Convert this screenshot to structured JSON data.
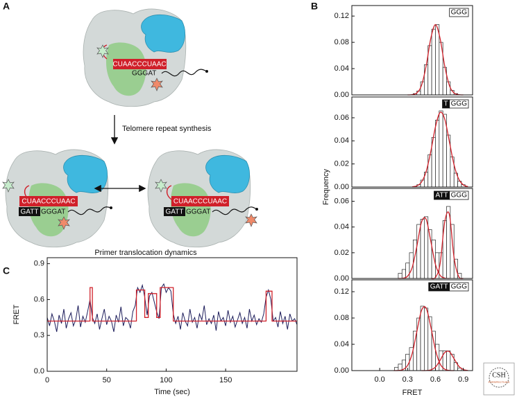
{
  "panel_labels": {
    "a": "A",
    "b": "B",
    "c": "C"
  },
  "panel_a": {
    "step_label": "Telomere repeat synthesis",
    "dynamics_label": "Primer translocation dynamics",
    "complexes": [
      {
        "rna": "CUAACCCUAAC",
        "dna": "GGGAT"
      },
      {
        "rna": "CUAACCCUAAC",
        "dna_paired": "GATT",
        "dna": "GGGAT"
      },
      {
        "rna": "CUAACCCUAAC",
        "dna_paired": "GATT",
        "dna": "GGGAT"
      }
    ]
  },
  "panel_b": {
    "ylabel": "Frequency",
    "xlabel": "FRET"
  },
  "logo": {
    "line1": "CSH",
    "line2": "PERSPECTIVES"
  },
  "chart_data": [
    {
      "type": "histogram",
      "tag": [
        {
          "text": "GGG",
          "style": "light"
        }
      ],
      "bar_color": "#ffffff",
      "fit_color": "#d0202a",
      "bins": [
        0.36,
        0.4,
        0.44,
        0.48,
        0.52,
        0.56,
        0.6,
        0.64,
        0.68,
        0.72,
        0.76,
        0.8,
        0.84
      ],
      "values": [
        0.002,
        0.006,
        0.02,
        0.046,
        0.075,
        0.1,
        0.107,
        0.08,
        0.042,
        0.02,
        0.007,
        0.002
      ],
      "fits": [
        {
          "x": [
            0.3,
            0.35,
            0.4,
            0.45,
            0.5,
            0.55,
            0.6,
            0.65,
            0.7,
            0.75,
            0.8,
            0.85,
            0.9
          ],
          "values": [
            0,
            0.0004,
            0.003,
            0.0145,
            0.044,
            0.086,
            0.107,
            0.086,
            0.044,
            0.0145,
            0.003,
            0.0004,
            0
          ]
        }
      ],
      "xlim": [
        -0.3,
        1.0
      ],
      "ylim": [
        0,
        0.136
      ],
      "yticks": [
        {
          "value": 0,
          "label": "0.00"
        },
        {
          "value": 0.04,
          "label": "0.04"
        },
        {
          "value": 0.08,
          "label": "0.08"
        },
        {
          "value": 0.12,
          "label": "0.12"
        }
      ]
    },
    {
      "type": "histogram",
      "tag": [
        {
          "text": "T",
          "style": "dark"
        },
        {
          "text": "GGG",
          "style": "light"
        }
      ],
      "bar_color": "#ffffff",
      "fit_color": "#d0202a",
      "bins": [
        0.4,
        0.44,
        0.48,
        0.52,
        0.56,
        0.6,
        0.64,
        0.68,
        0.72,
        0.76,
        0.8,
        0.84,
        0.88,
        0.92
      ],
      "values": [
        0.002,
        0.006,
        0.013,
        0.028,
        0.043,
        0.058,
        0.066,
        0.063,
        0.045,
        0.026,
        0.012,
        0.005,
        0.002
      ],
      "fits": [
        {
          "x": [
            0.35,
            0.4,
            0.45,
            0.5,
            0.55,
            0.6,
            0.65,
            0.7,
            0.75,
            0.8,
            0.85,
            0.9,
            0.95
          ],
          "values": [
            0.0002,
            0.001,
            0.0043,
            0.0134,
            0.0308,
            0.052,
            0.0646,
            0.0589,
            0.0394,
            0.0194,
            0.007,
            0.0019,
            0.0004
          ]
        }
      ],
      "xlim": [
        -0.3,
        1.0
      ],
      "ylim": [
        0,
        0.078
      ],
      "yticks": [
        {
          "value": 0,
          "label": "0.00"
        },
        {
          "value": 0.02,
          "label": "0.02"
        },
        {
          "value": 0.04,
          "label": "0.04"
        },
        {
          "value": 0.06,
          "label": "0.06"
        }
      ]
    },
    {
      "type": "histogram",
      "tag": [
        {
          "text": "ATT",
          "style": "dark"
        },
        {
          "text": "GGG",
          "style": "light"
        }
      ],
      "bar_color": "#ffffff",
      "fit_color": "#d0202a",
      "bins": [
        0.2,
        0.24,
        0.28,
        0.32,
        0.36,
        0.4,
        0.44,
        0.48,
        0.52,
        0.56,
        0.6,
        0.64,
        0.68,
        0.72,
        0.76,
        0.8,
        0.84,
        0.88
      ],
      "values": [
        0.004,
        0.007,
        0.012,
        0.02,
        0.03,
        0.042,
        0.046,
        0.048,
        0.038,
        0.03,
        0.02,
        0.02,
        0.045,
        0.056,
        0.042,
        0.015,
        0.004
      ],
      "fits": [
        {
          "x": [
            0.2,
            0.25,
            0.3,
            0.35,
            0.4,
            0.45,
            0.5,
            0.55,
            0.6,
            0.65,
            0.7,
            0.75
          ],
          "values": [
            0,
            0.0002,
            0.0018,
            0.0086,
            0.025,
            0.0438,
            0.046,
            0.029,
            0.011,
            0.0025,
            0.0003,
            0
          ]
        },
        {
          "x": [
            0.55,
            0.6,
            0.65,
            0.7,
            0.75,
            0.8,
            0.85,
            0.9
          ],
          "values": [
            0,
            0.0008,
            0.0113,
            0.044,
            0.0498,
            0.0164,
            0.0016,
            0
          ]
        }
      ],
      "xlim": [
        -0.3,
        1.0
      ],
      "ylim": [
        0,
        0.07
      ],
      "yticks": [
        {
          "value": 0,
          "label": "0.00"
        },
        {
          "value": 0.02,
          "label": "0.02"
        },
        {
          "value": 0.04,
          "label": "0.04"
        },
        {
          "value": 0.06,
          "label": "0.06"
        }
      ]
    },
    {
      "type": "histogram",
      "tag": [
        {
          "text": "GATT",
          "style": "dark"
        },
        {
          "text": "GGG",
          "style": "light"
        }
      ],
      "bar_color": "#ffffff",
      "fit_color": "#d0202a",
      "bins": [
        0.16,
        0.2,
        0.24,
        0.28,
        0.32,
        0.36,
        0.4,
        0.44,
        0.48,
        0.52,
        0.56,
        0.6,
        0.64,
        0.68,
        0.72,
        0.76,
        0.8,
        0.84,
        0.88
      ],
      "values": [
        0.005,
        0.01,
        0.016,
        0.025,
        0.035,
        0.06,
        0.08,
        0.098,
        0.095,
        0.082,
        0.06,
        0.04,
        0.03,
        0.03,
        0.03,
        0.025,
        0.012,
        0.004
      ],
      "fits": [
        {
          "x": [
            0.15,
            0.2,
            0.25,
            0.3,
            0.35,
            0.4,
            0.45,
            0.5,
            0.55,
            0.6,
            0.65,
            0.7,
            0.75,
            0.8
          ],
          "values": [
            0,
            0.0002,
            0.0016,
            0.0078,
            0.026,
            0.0595,
            0.0914,
            0.095,
            0.0668,
            0.0318,
            0.0102,
            0.0022,
            0.0003,
            0
          ]
        },
        {
          "x": [
            0.45,
            0.5,
            0.55,
            0.6,
            0.65,
            0.7,
            0.75,
            0.8,
            0.85,
            0.9,
            0.95
          ],
          "values": [
            0,
            0.0001,
            0.0011,
            0.0053,
            0.0156,
            0.0274,
            0.0288,
            0.0182,
            0.0069,
            0.0016,
            0.0002
          ]
        }
      ],
      "xlim": [
        -0.3,
        1.0
      ],
      "ylim": [
        0,
        0.138
      ],
      "xticks": [
        {
          "value": 0,
          "label": "0.0"
        },
        0.3,
        0.6,
        0.9
      ],
      "yticks": [
        {
          "value": 0,
          "label": "0.00"
        },
        {
          "value": 0.04,
          "label": "0.04"
        },
        {
          "value": 0.08,
          "label": "0.08"
        },
        {
          "value": 0.12,
          "label": "0.12"
        }
      ]
    },
    {
      "type": "line",
      "xlabel": "Time (sec)",
      "ylabel": "FRET",
      "xlim": [
        0,
        210
      ],
      "ylim": [
        0,
        0.95
      ],
      "xticks": [
        0,
        50,
        100,
        150
      ],
      "yticks": [
        {
          "value": 0,
          "label": "0.0"
        },
        0.3,
        0.6,
        0.9
      ],
      "series": [
        {
          "color": "#1c1c5a",
          "x": [
            0,
            2,
            4,
            6,
            8,
            10,
            12,
            14,
            16,
            18,
            20,
            22,
            24,
            26,
            28,
            30,
            32,
            34,
            36,
            38,
            40,
            42,
            44,
            46,
            48,
            50,
            52,
            54,
            56,
            58,
            60,
            62,
            64,
            66,
            68,
            70,
            72,
            74,
            76,
            78,
            80,
            82,
            84,
            86,
            88,
            90,
            92,
            94,
            96,
            98,
            100,
            102,
            104,
            106,
            108,
            110,
            112,
            114,
            116,
            118,
            120,
            122,
            124,
            126,
            128,
            130,
            132,
            134,
            136,
            138,
            140,
            142,
            144,
            146,
            148,
            150,
            152,
            154,
            156,
            158,
            160,
            162,
            164,
            166,
            168,
            170,
            172,
            174,
            176,
            178,
            180,
            182,
            184,
            186,
            188,
            190,
            192,
            194,
            196,
            198,
            200,
            202,
            204,
            206,
            208,
            210
          ],
          "values": [
            0.45,
            0.38,
            0.48,
            0.42,
            0.33,
            0.47,
            0.4,
            0.52,
            0.36,
            0.44,
            0.49,
            0.38,
            0.43,
            0.55,
            0.37,
            0.46,
            0.41,
            0.5,
            0.6,
            0.45,
            0.4,
            0.48,
            0.35,
            0.44,
            0.52,
            0.39,
            0.46,
            0.42,
            0.33,
            0.47,
            0.41,
            0.54,
            0.38,
            0.45,
            0.43,
            0.36,
            0.5,
            0.55,
            0.7,
            0.66,
            0.72,
            0.62,
            0.47,
            0.63,
            0.66,
            0.58,
            0.5,
            0.44,
            0.7,
            0.73,
            0.66,
            0.7,
            0.67,
            0.48,
            0.4,
            0.46,
            0.35,
            0.49,
            0.42,
            0.38,
            0.52,
            0.41,
            0.45,
            0.36,
            0.48,
            0.43,
            0.55,
            0.39,
            0.44,
            0.4,
            0.47,
            0.34,
            0.5,
            0.42,
            0.45,
            0.38,
            0.51,
            0.41,
            0.46,
            0.37,
            0.43,
            0.49,
            0.4,
            0.45,
            0.36,
            0.52,
            0.42,
            0.47,
            0.39,
            0.44,
            0.41,
            0.48,
            0.62,
            0.68,
            0.6,
            0.42,
            0.45,
            0.37,
            0.5,
            0.4,
            0.46,
            0.35,
            0.48,
            0.42,
            0.44,
            0.39
          ]
        },
        {
          "color": "#d0202a",
          "x": [
            0,
            36,
            36,
            38,
            38,
            75,
            75,
            82,
            82,
            85,
            85,
            92,
            92,
            95,
            95,
            106,
            106,
            184,
            184,
            189,
            189,
            210
          ],
          "values": [
            0.42,
            0.42,
            0.7,
            0.7,
            0.42,
            0.42,
            0.68,
            0.68,
            0.45,
            0.45,
            0.65,
            0.65,
            0.45,
            0.45,
            0.7,
            0.7,
            0.42,
            0.42,
            0.67,
            0.67,
            0.42,
            0.42
          ]
        }
      ]
    }
  ]
}
